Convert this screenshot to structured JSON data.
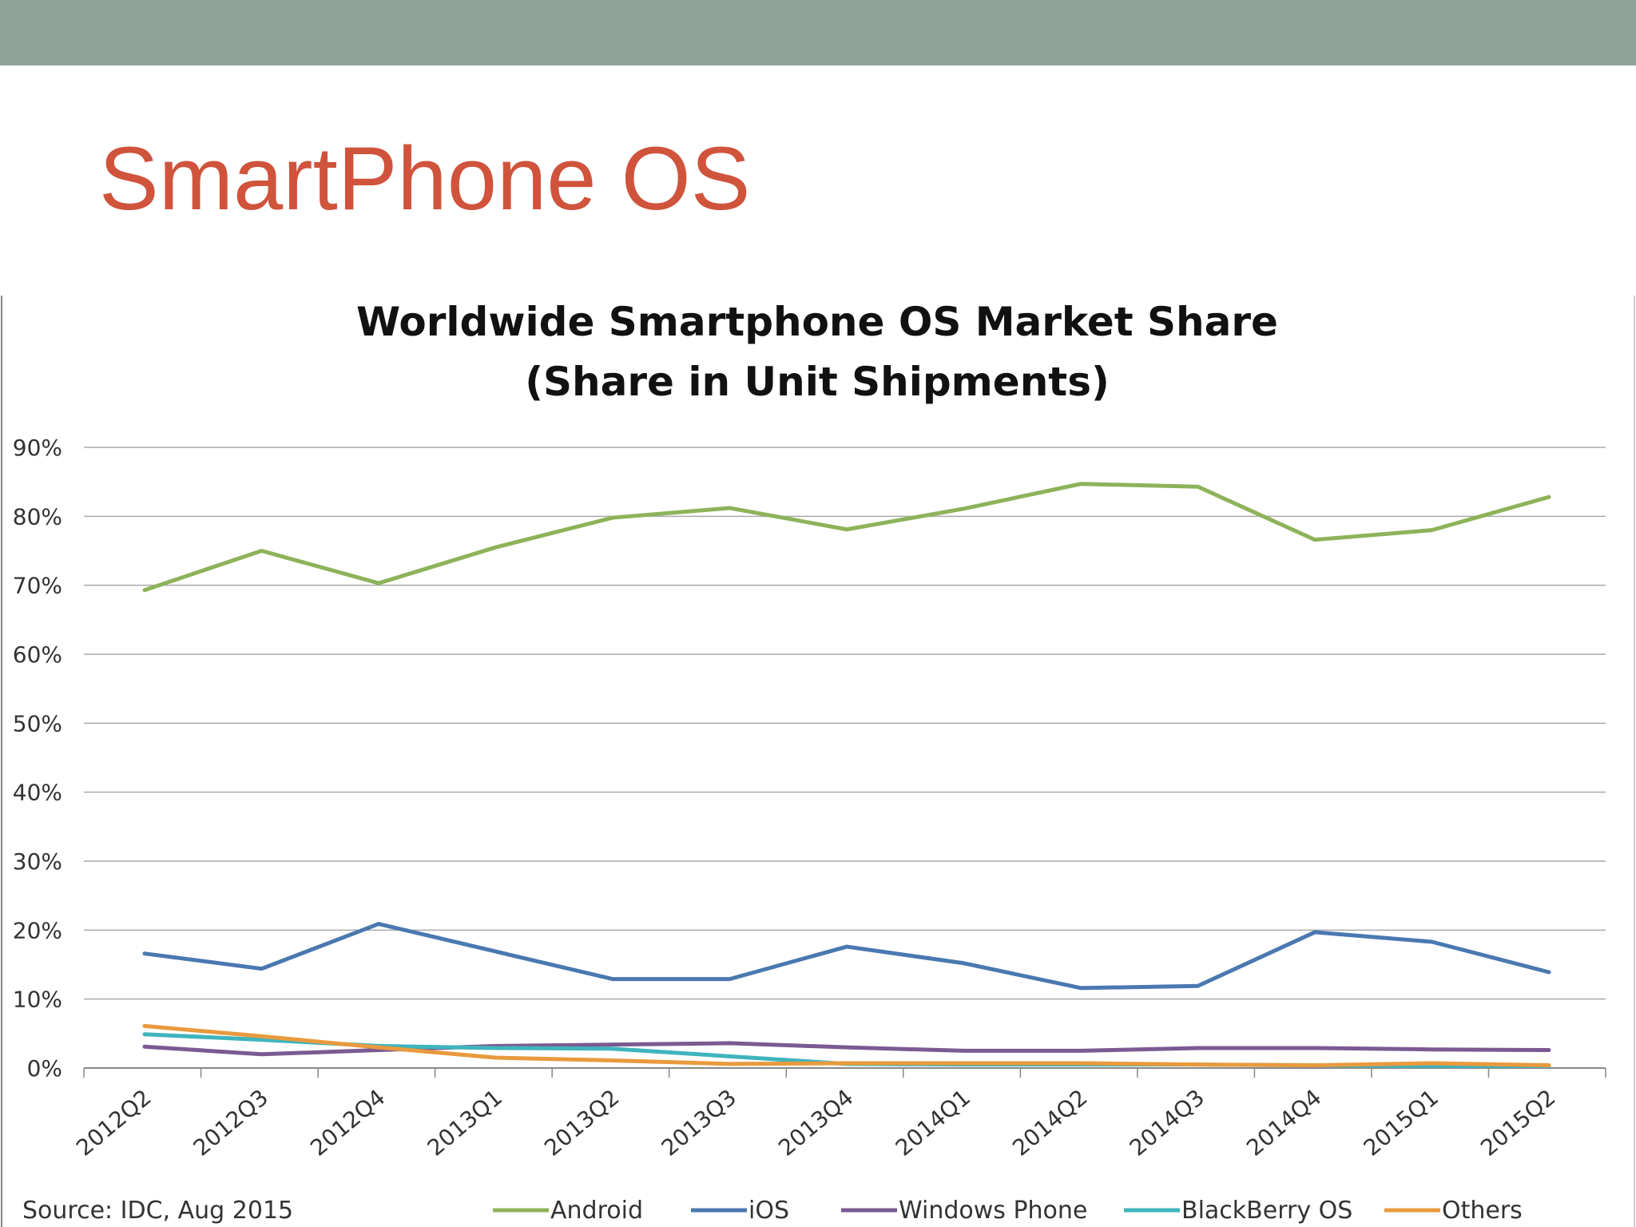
{
  "slide": {
    "title": "SmartPhone OS",
    "bar_color": "#8fa39a",
    "title_color": "#d0533c"
  },
  "chart_data": {
    "type": "line",
    "title": [
      "Worldwide Smartphone OS Market Share",
      "(Share in Unit Shipments)"
    ],
    "source": "Source: IDC, Aug 2015",
    "x": [
      "2012Q2",
      "2012Q3",
      "2012Q4",
      "2013Q1",
      "2013Q2",
      "2013Q3",
      "2013Q4",
      "2014Q1",
      "2014Q2",
      "2014Q3",
      "2014Q4",
      "2015Q1",
      "2015Q2"
    ],
    "ylim": [
      0,
      90
    ],
    "yticks": [
      "0%",
      "10%",
      "20%",
      "30%",
      "40%",
      "50%",
      "60%",
      "70%",
      "80%",
      "90%"
    ],
    "grid": true,
    "legend_position": "bottom",
    "series": [
      {
        "name": "Android",
        "color": "#8db35a",
        "values": [
          69.3,
          75.0,
          70.3,
          75.5,
          79.8,
          81.2,
          78.1,
          81.1,
          84.7,
          84.3,
          76.6,
          78.0,
          82.8
        ]
      },
      {
        "name": "iOS",
        "color": "#4a78b0",
        "values": [
          16.6,
          14.4,
          20.9,
          16.9,
          12.9,
          12.9,
          17.6,
          15.2,
          11.6,
          11.9,
          19.7,
          18.3,
          13.9
        ]
      },
      {
        "name": "Windows Phone",
        "color": "#7b5a92",
        "values": [
          3.1,
          2.0,
          2.6,
          3.2,
          3.4,
          3.6,
          3.0,
          2.5,
          2.5,
          2.9,
          2.9,
          2.7,
          2.6
        ]
      },
      {
        "name": "BlackBerry OS",
        "color": "#3fb4bd",
        "values": [
          4.9,
          4.1,
          3.2,
          2.9,
          2.8,
          1.7,
          0.6,
          0.5,
          0.5,
          0.5,
          0.4,
          0.3,
          0.3
        ]
      },
      {
        "name": "Others",
        "color": "#e99a3d",
        "values": [
          6.1,
          4.6,
          3.0,
          1.5,
          1.1,
          0.6,
          0.7,
          0.7,
          0.7,
          0.5,
          0.4,
          0.7,
          0.4
        ]
      }
    ]
  }
}
